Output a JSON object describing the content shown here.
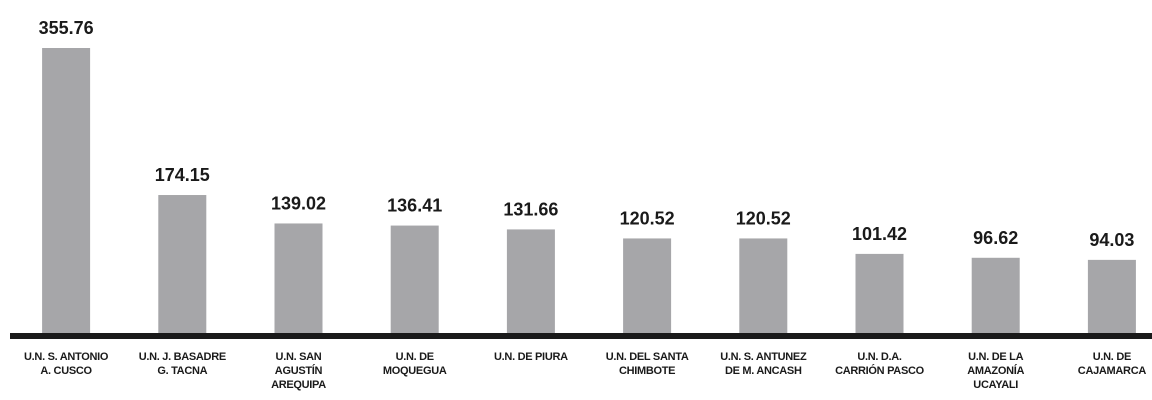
{
  "chart_data": {
    "type": "bar",
    "categories": [
      [
        "U.N. S. ANTONIO",
        "A. CUSCO"
      ],
      [
        "U.N. J. BASADRE",
        "G. TACNA"
      ],
      [
        "U.N. SAN",
        "AGUSTÍN",
        "AREQUIPA"
      ],
      [
        "U.N. DE",
        "MOQUEGUA"
      ],
      [
        "U.N. DE PIURA"
      ],
      [
        "U.N. DEL SANTA",
        "CHIMBOTE"
      ],
      [
        "U.N. S. ANTUNEZ",
        "DE M. ANCASH"
      ],
      [
        "U.N. D.A.",
        "CARRIÓN PASCO"
      ],
      [
        "U.N. DE LA",
        "AMAZONÍA",
        "UCAYALI"
      ],
      [
        "U.N. DE",
        "CAJAMARCA"
      ]
    ],
    "values": [
      355.76,
      174.15,
      139.02,
      136.41,
      131.66,
      120.52,
      120.52,
      101.42,
      96.62,
      94.03
    ],
    "color": "#a6a6a9"
  }
}
